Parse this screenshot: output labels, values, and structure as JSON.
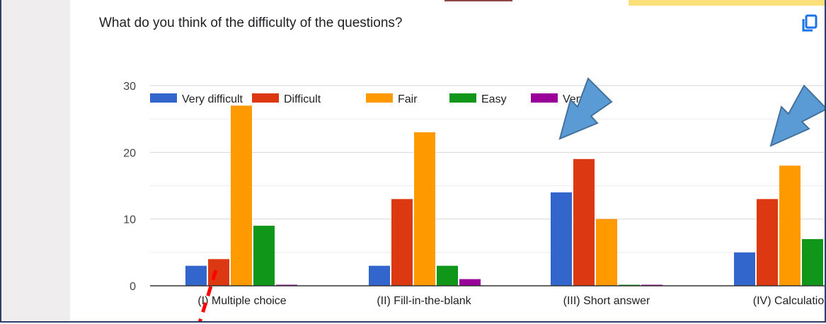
{
  "question": {
    "title": "What do you think of the difficulty of the questions?"
  },
  "icons": {
    "copy": "copy-icon"
  },
  "colors": {
    "very_difficult": "#3366cc",
    "difficult": "#dc3912",
    "fair": "#ff9900",
    "easy": "#109618",
    "very_easy": "#990099",
    "arrow_fill": "#5b9bd5",
    "arrow_stroke": "#41719c",
    "dash_line": "#ff0000",
    "copy_icon": "#1a73e8"
  },
  "chart_data": {
    "type": "bar",
    "title": "",
    "xlabel": "",
    "ylabel": "",
    "ylim": [
      0,
      30
    ],
    "yticks": [
      "0",
      "10",
      "20",
      "30"
    ],
    "grid": true,
    "legend_position": "top-left",
    "categories": [
      "(I) Multiple choice",
      "(II) Fill-in-the-blank",
      "(III) Short answer",
      "(IV) Calculatio"
    ],
    "series": [
      {
        "name": "Very difficult",
        "values": [
          3,
          3,
          14,
          5
        ]
      },
      {
        "name": "Difficult",
        "values": [
          4,
          13,
          19,
          13
        ]
      },
      {
        "name": "Fair",
        "values": [
          27,
          23,
          10,
          18
        ]
      },
      {
        "name": "Easy",
        "values": [
          9,
          3,
          0,
          7
        ]
      },
      {
        "name": "Very",
        "values": [
          0,
          1,
          0,
          0
        ]
      }
    ]
  }
}
